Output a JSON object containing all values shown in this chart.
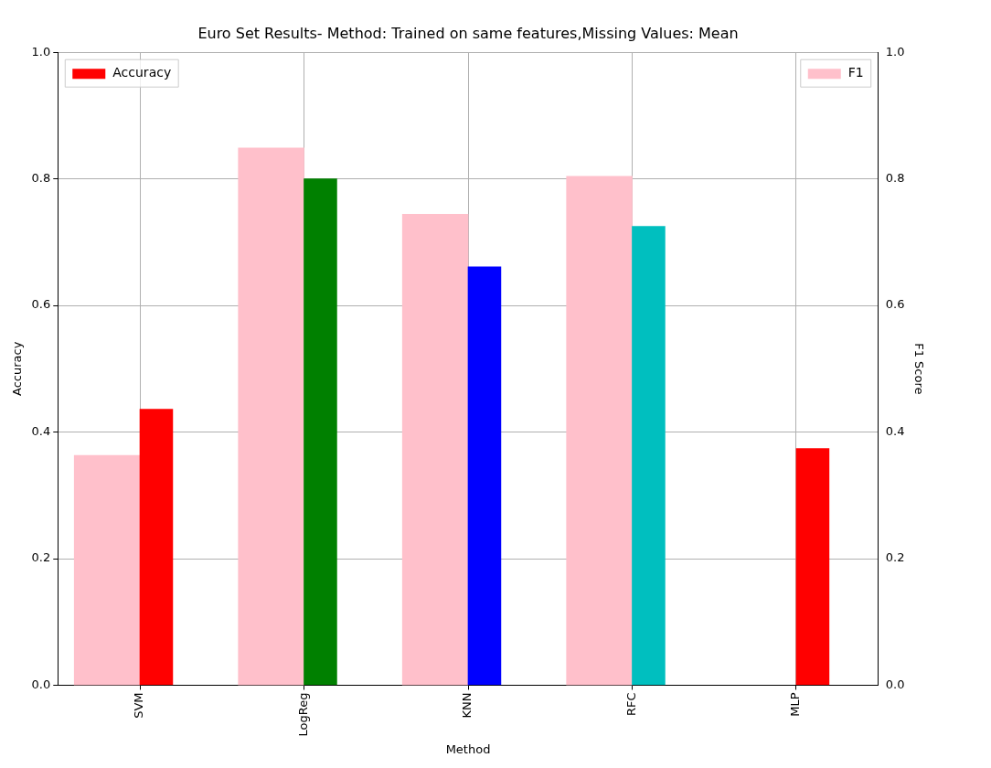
{
  "chart_data": {
    "type": "bar",
    "title": "Euro Set Results- Method: Trained on same features,Missing Values: Mean",
    "xlabel": "Method",
    "ylabel": "Accuracy",
    "y2label": "F1 Score",
    "categories": [
      "SVM",
      "LogReg",
      "KNN",
      "RFC",
      "MLP"
    ],
    "series": [
      {
        "name": "Accuracy",
        "color": "#ff0000",
        "colors": [
          "#ff0000",
          "#008000",
          "#0000ff",
          "#00bfbf",
          "#ff0000"
        ],
        "values": [
          0.436,
          0.8,
          0.661,
          0.725,
          0.374
        ]
      },
      {
        "name": "F1",
        "color": "#ffc0cb",
        "axis": "y2",
        "values": [
          0.363,
          0.849,
          0.744,
          0.804,
          null
        ]
      }
    ],
    "ylim": [
      0,
      1
    ],
    "yticks": [
      {
        "value": 0,
        "label": "0.0"
      },
      {
        "value": 0.2,
        "label": "0.2"
      },
      {
        "value": 0.4,
        "label": "0.4"
      },
      {
        "value": 0.6,
        "label": "0.6"
      },
      {
        "value": 0.8,
        "label": "0.8"
      },
      {
        "value": 1,
        "label": "1.0"
      }
    ],
    "y2lim": [
      0,
      1
    ],
    "y2ticks": [
      {
        "value": 0,
        "label": "0.0"
      },
      {
        "value": 0.2,
        "label": "0.2"
      },
      {
        "value": 0.4,
        "label": "0.4"
      },
      {
        "value": 0.6,
        "label": "0.6"
      },
      {
        "value": 0.8,
        "label": "0.8"
      },
      {
        "value": 1,
        "label": "1.0"
      }
    ],
    "grid": true,
    "legend": "top"
  }
}
